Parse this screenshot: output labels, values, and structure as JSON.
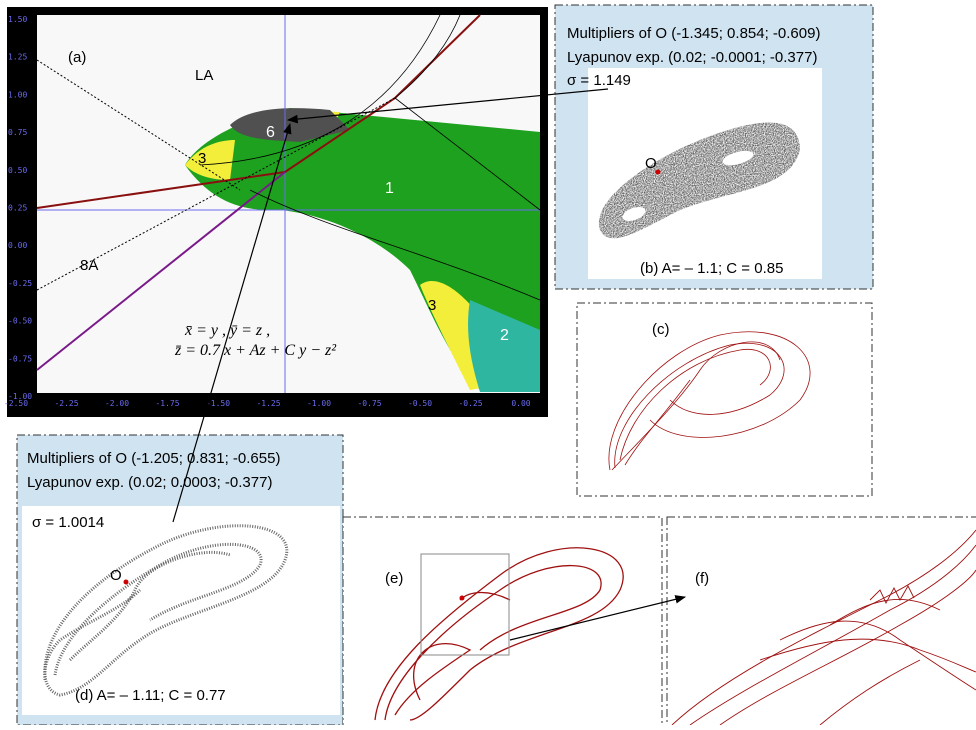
{
  "panel_a": {
    "label": "(a)",
    "region_la": "LA",
    "region_6": "6",
    "region_3a": "3",
    "region_1": "1",
    "region_8a": "8A",
    "region_3b": "3",
    "region_2": "2",
    "eq_1": "x̄ = y ,  ȳ = z ,",
    "eq_2": "z̄ = 0.7 x + Az + C y − z²",
    "xticks": [
      "-2.50",
      "-2.25",
      "-2.00",
      "-1.75",
      "-1.50",
      "-1.25",
      "-1.00",
      "-0.75",
      "-0.50",
      "-0.25",
      "0.00"
    ],
    "yticks": [
      "1.50",
      "1.25",
      "1.00",
      "0.75",
      "0.50",
      "0.25",
      "0.00",
      "-0.25",
      "-0.50",
      "-0.75",
      "-1.00"
    ]
  },
  "panel_b": {
    "multipliers": "Multipliers of O (-1.345; 0.854; -0.609)",
    "lyapunov": "Lyapunov exp. (0.02; -0.0001; -0.377)",
    "sigma": "σ = 1.149",
    "point": "O",
    "caption": "(b)  A= – 1.1; C = 0.85"
  },
  "panel_c": {
    "label": "(c)"
  },
  "panel_d": {
    "multipliers": "Multipliers of O (-1.205; 0.831; -0.655)",
    "lyapunov": "Lyapunov exp. (0.02; 0.0003; -0.377)",
    "sigma": "σ = 1.0014",
    "point": "O",
    "caption": "(d)  A= – 1.11; C = 0.77"
  },
  "panel_e": {
    "label": "(e)"
  },
  "panel_f": {
    "label": "(f)"
  }
}
